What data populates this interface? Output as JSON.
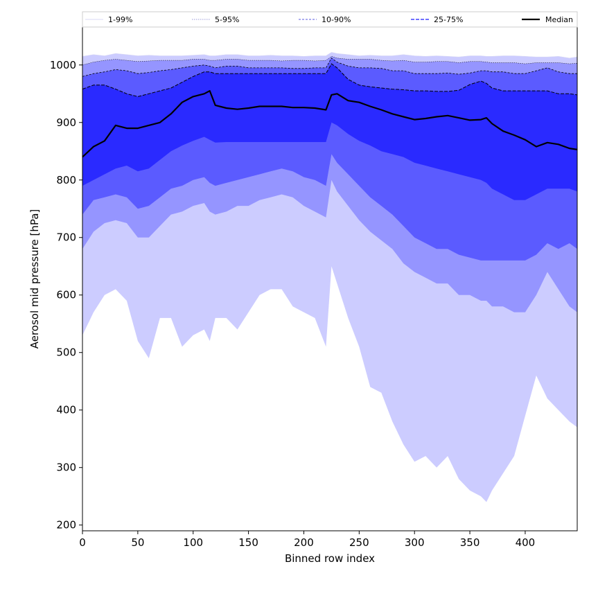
{
  "chart_data": {
    "type": "area",
    "xlabel": "Binned row index",
    "ylabel": "Aerosol mid pressure [hPa]",
    "xlim": [
      0,
      447
    ],
    "ylim": [
      190,
      1066
    ],
    "xticks": [
      0,
      50,
      100,
      150,
      200,
      250,
      300,
      350,
      400
    ],
    "yticks": [
      200,
      300,
      400,
      500,
      600,
      700,
      800,
      900,
      1000
    ],
    "grid": false,
    "legend_position": "top, above plot",
    "x": [
      0,
      10,
      20,
      30,
      40,
      50,
      60,
      70,
      80,
      90,
      100,
      110,
      115,
      120,
      130,
      140,
      150,
      160,
      170,
      180,
      190,
      200,
      210,
      220,
      225,
      230,
      240,
      250,
      260,
      270,
      280,
      290,
      300,
      310,
      320,
      330,
      340,
      350,
      360,
      365,
      370,
      380,
      390,
      400,
      410,
      420,
      430,
      440,
      447
    ],
    "series": [
      {
        "name": "1-99%",
        "color": "#ccccff",
        "lower": [
          530,
          570,
          600,
          610,
          590,
          520,
          490,
          560,
          560,
          510,
          530,
          540,
          520,
          560,
          560,
          540,
          570,
          600,
          610,
          610,
          580,
          570,
          560,
          510,
          650,
          620,
          560,
          510,
          440,
          430,
          380,
          340,
          310,
          320,
          300,
          320,
          280,
          260,
          250,
          240,
          260,
          290,
          320,
          390,
          460,
          420,
          400,
          380,
          370
        ],
        "upper": [
          1015,
          1018,
          1016,
          1020,
          1018,
          1016,
          1017,
          1016,
          1016,
          1016,
          1017,
          1018,
          1016,
          1016,
          1018,
          1018,
          1016,
          1016,
          1017,
          1016,
          1016,
          1015,
          1016,
          1016,
          1022,
          1020,
          1018,
          1016,
          1017,
          1016,
          1016,
          1018,
          1016,
          1015,
          1016,
          1015,
          1014,
          1016,
          1016,
          1015,
          1015,
          1016,
          1016,
          1015,
          1014,
          1014,
          1015,
          1012,
          1014
        ]
      },
      {
        "name": "5-95%",
        "color": "#9595ff",
        "lower": [
          680,
          710,
          725,
          730,
          725,
          700,
          700,
          720,
          740,
          745,
          755,
          760,
          745,
          740,
          745,
          755,
          755,
          765,
          770,
          775,
          770,
          755,
          745,
          735,
          800,
          780,
          755,
          730,
          710,
          695,
          680,
          655,
          640,
          630,
          620,
          620,
          600,
          600,
          590,
          590,
          580,
          580,
          570,
          570,
          600,
          640,
          610,
          580,
          570
        ],
        "upper": [
          1000,
          1005,
          1008,
          1010,
          1008,
          1006,
          1007,
          1008,
          1008,
          1008,
          1010,
          1010,
          1008,
          1008,
          1010,
          1010,
          1008,
          1008,
          1008,
          1007,
          1008,
          1008,
          1007,
          1008,
          1015,
          1012,
          1010,
          1010,
          1010,
          1008,
          1007,
          1008,
          1005,
          1005,
          1006,
          1006,
          1004,
          1006,
          1006,
          1005,
          1004,
          1004,
          1004,
          1002,
          1004,
          1004,
          1004,
          1002,
          1003
        ]
      },
      {
        "name": "10-90%",
        "color": "#5b5bff",
        "lower": [
          740,
          765,
          770,
          775,
          770,
          750,
          755,
          770,
          785,
          790,
          800,
          805,
          795,
          790,
          795,
          800,
          805,
          810,
          815,
          820,
          815,
          805,
          800,
          790,
          845,
          830,
          810,
          790,
          770,
          755,
          740,
          720,
          700,
          690,
          680,
          680,
          670,
          665,
          660,
          660,
          660,
          660,
          660,
          660,
          670,
          690,
          680,
          690,
          680
        ],
        "upper": [
          980,
          985,
          988,
          992,
          990,
          985,
          987,
          990,
          992,
          995,
          998,
          1000,
          998,
          995,
          998,
          998,
          995,
          995,
          995,
          995,
          994,
          994,
          995,
          995,
          1012,
          1005,
          998,
          995,
          995,
          994,
          990,
          990,
          985,
          985,
          985,
          986,
          984,
          986,
          990,
          990,
          988,
          988,
          985,
          985,
          990,
          995,
          988,
          985,
          985
        ]
      },
      {
        "name": "25-75%",
        "color": "#2a2aff",
        "lower": [
          790,
          800,
          810,
          820,
          825,
          815,
          820,
          835,
          850,
          860,
          868,
          875,
          870,
          865,
          866,
          866,
          866,
          866,
          866,
          866,
          866,
          866,
          866,
          866,
          900,
          895,
          880,
          868,
          860,
          850,
          845,
          840,
          830,
          825,
          820,
          815,
          810,
          805,
          800,
          795,
          785,
          775,
          765,
          765,
          775,
          785,
          785,
          785,
          780
        ],
        "upper": [
          958,
          965,
          965,
          958,
          950,
          945,
          950,
          955,
          960,
          970,
          980,
          988,
          988,
          985,
          985,
          985,
          985,
          985,
          985,
          985,
          985,
          985,
          985,
          985,
          1002,
          995,
          975,
          965,
          962,
          960,
          958,
          957,
          955,
          955,
          954,
          954,
          956,
          966,
          972,
          968,
          960,
          955,
          955,
          955,
          955,
          955,
          950,
          950,
          948
        ]
      },
      {
        "name": "Median",
        "color": "#000000",
        "values": [
          840,
          858,
          868,
          895,
          890,
          890,
          895,
          900,
          915,
          935,
          945,
          950,
          955,
          930,
          925,
          923,
          925,
          928,
          928,
          928,
          926,
          926,
          925,
          922,
          948,
          950,
          938,
          935,
          928,
          922,
          915,
          910,
          905,
          907,
          910,
          912,
          908,
          904,
          905,
          908,
          898,
          885,
          878,
          870,
          858,
          865,
          862,
          855,
          853
        ]
      }
    ]
  }
}
